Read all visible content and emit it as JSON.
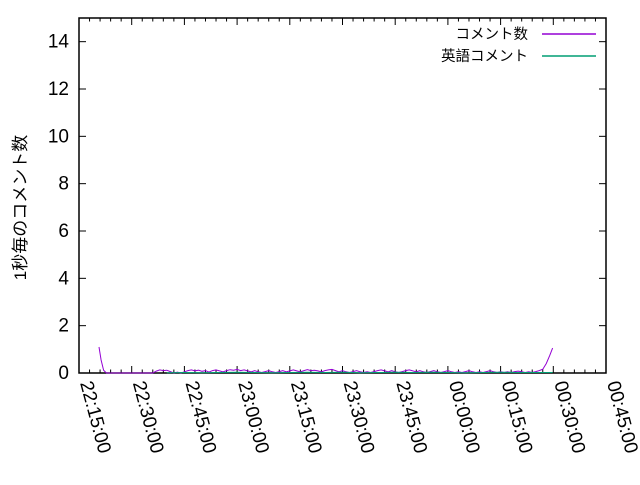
{
  "figure": {
    "background": "#ffffff",
    "axis_color": "#000000"
  },
  "chart_data": {
    "type": "line",
    "title": "",
    "xlabel": "",
    "ylabel": "1秒毎のコメント数",
    "ylim": [
      0,
      15
    ],
    "y_tick_labels": [
      "0",
      "2",
      "4",
      "6",
      "8",
      "10",
      "12",
      "14"
    ],
    "x_tick_labels": [
      "22:15:00",
      "22:30:00",
      "22:45:00",
      "23:00:00",
      "23:15:00",
      "23:30:00",
      "23:45:00",
      "00:00:00",
      "00:15:00",
      "00:30:00",
      "00:45:00"
    ],
    "x_unit": "minutes after 22:15:00",
    "x_minutes_total": 150,
    "x_major_tick_minutes": 15,
    "x_minor_tick_minutes": 3,
    "grid": false,
    "legend_position": "top-right-inside",
    "axis_color": "#000000",
    "series": [
      {
        "name": "コメント数",
        "color": "#9400d3",
        "points": [
          [
            5.7,
            1.1
          ],
          [
            6.3,
            0.55
          ],
          [
            7,
            0.12
          ],
          [
            7.8,
            0
          ],
          [
            10,
            0
          ],
          [
            14,
            0
          ],
          [
            18,
            0
          ],
          [
            21,
            0
          ],
          [
            22,
            0.08
          ],
          [
            23,
            0.13
          ],
          [
            24,
            0.1
          ],
          [
            25,
            0.12
          ],
          [
            26,
            0.06
          ],
          [
            27,
            0
          ],
          [
            28,
            0.04
          ],
          [
            29,
            0
          ],
          [
            30,
            0.05
          ],
          [
            31,
            0.1
          ],
          [
            32,
            0.13
          ],
          [
            33,
            0.09
          ],
          [
            34,
            0.12
          ],
          [
            35,
            0.07
          ],
          [
            36,
            0.1
          ],
          [
            37,
            0.04
          ],
          [
            38,
            0.1
          ],
          [
            39,
            0.13
          ],
          [
            40,
            0.09
          ],
          [
            41,
            0.05
          ],
          [
            42,
            0.1
          ],
          [
            43,
            0.14
          ],
          [
            44,
            0.12
          ],
          [
            45,
            0.15
          ],
          [
            46,
            0.1
          ],
          [
            47,
            0.13
          ],
          [
            48,
            0.09
          ],
          [
            49,
            0.05
          ],
          [
            50,
            0.1
          ],
          [
            51,
            0.05
          ],
          [
            52,
            0.02
          ],
          [
            53,
            0.06
          ],
          [
            54,
            0.1
          ],
          [
            55,
            0.05
          ],
          [
            56,
            0.02
          ],
          [
            57,
            0.06
          ],
          [
            58,
            0.1
          ],
          [
            59,
            0.05
          ],
          [
            60,
            0.09
          ],
          [
            61,
            0.13
          ],
          [
            62,
            0.09
          ],
          [
            63,
            0.05
          ],
          [
            64,
            0.1
          ],
          [
            65,
            0.14
          ],
          [
            66,
            0.1
          ],
          [
            67,
            0.12
          ],
          [
            68,
            0.09
          ],
          [
            69,
            0.05
          ],
          [
            70,
            0.1
          ],
          [
            71,
            0.13
          ],
          [
            72,
            0.15
          ],
          [
            73,
            0.1
          ],
          [
            74,
            0.05
          ],
          [
            75,
            0.1
          ],
          [
            76,
            0.05
          ],
          [
            77,
            0.02
          ],
          [
            78,
            0.06
          ],
          [
            79,
            0.1
          ],
          [
            80,
            0.05
          ],
          [
            81,
            0.02
          ],
          [
            82,
            0.05
          ],
          [
            83,
            0.02
          ],
          [
            84,
            0.06
          ],
          [
            85,
            0.1
          ],
          [
            86,
            0.13
          ],
          [
            87,
            0.09
          ],
          [
            88,
            0.05
          ],
          [
            89,
            0.1
          ],
          [
            90,
            0.05
          ],
          [
            91,
            0.02
          ],
          [
            92,
            0.06
          ],
          [
            93,
            0.1
          ],
          [
            94,
            0.13
          ],
          [
            95,
            0.09
          ],
          [
            96,
            0.05
          ],
          [
            97,
            0.1
          ],
          [
            98,
            0.05
          ],
          [
            99,
            0.02
          ],
          [
            100,
            0.06
          ],
          [
            101,
            0.1
          ],
          [
            102,
            0.05
          ],
          [
            103,
            0.02
          ],
          [
            104,
            0.06
          ],
          [
            105,
            0.1
          ],
          [
            106,
            0.05
          ],
          [
            107,
            0.02
          ],
          [
            108,
            0.05
          ],
          [
            109,
            0.02
          ],
          [
            110,
            0.06
          ],
          [
            111,
            0.1
          ],
          [
            112,
            0.05
          ],
          [
            113,
            0.02
          ],
          [
            114,
            0.05
          ],
          [
            115,
            0.02
          ],
          [
            116,
            0.06
          ],
          [
            117,
            0.1
          ],
          [
            118,
            0.05
          ],
          [
            119,
            0.02
          ],
          [
            120,
            0.05
          ],
          [
            121,
            0.02
          ],
          [
            122,
            0.05
          ],
          [
            123,
            0.02
          ],
          [
            124,
            0.06
          ],
          [
            125,
            0.08
          ],
          [
            126,
            0.05
          ],
          [
            127,
            0.02
          ],
          [
            128,
            0.05
          ],
          [
            129,
            0.02
          ],
          [
            130,
            0.06
          ],
          [
            131,
            0.1
          ],
          [
            132,
            0.16
          ],
          [
            133,
            0.4
          ],
          [
            134,
            0.75
          ],
          [
            134.8,
            1.05
          ]
        ]
      },
      {
        "name": "英語コメント",
        "color": "#009e73",
        "points": [
          [
            25,
            0.01
          ],
          [
            30,
            0.02
          ],
          [
            35,
            0.01
          ],
          [
            40,
            0.02
          ],
          [
            45,
            0.03
          ],
          [
            50,
            0.02
          ],
          [
            55,
            0.01
          ],
          [
            60,
            0.02
          ],
          [
            65,
            0.03
          ],
          [
            70,
            0.02
          ],
          [
            75,
            0.03
          ],
          [
            80,
            0.01
          ],
          [
            85,
            0.02
          ],
          [
            90,
            0.03
          ],
          [
            95,
            0.02
          ],
          [
            100,
            0.03
          ],
          [
            105,
            0.02
          ],
          [
            110,
            0.01
          ],
          [
            115,
            0.02
          ],
          [
            120,
            0.03
          ],
          [
            125,
            0.02
          ],
          [
            130,
            0.02
          ],
          [
            134.8,
            0.02
          ]
        ]
      }
    ]
  }
}
